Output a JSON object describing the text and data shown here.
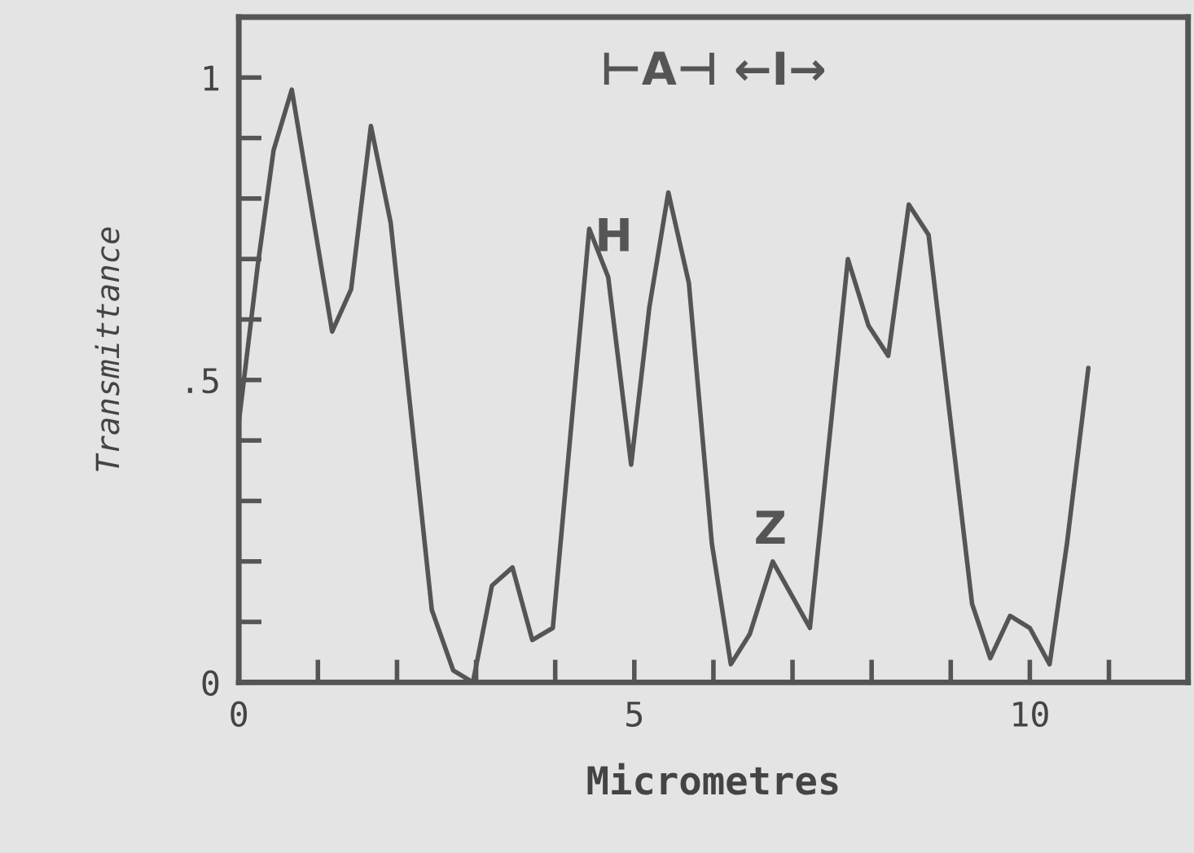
{
  "chart_data": {
    "type": "line",
    "xlabel": "Micrometres",
    "ylabel": "Transmittance",
    "x": [
      0,
      0.24,
      0.44,
      0.67,
      1.18,
      1.42,
      1.67,
      1.92,
      2.44,
      2.71,
      2.96,
      3.2,
      3.46,
      3.71,
      3.97,
      4.43,
      4.67,
      4.96,
      5.19,
      5.43,
      5.69,
      5.98,
      6.22,
      6.46,
      6.75,
      7.22,
      7.7,
      7.96,
      8.21,
      8.47,
      8.72,
      9.27,
      9.5,
      9.75,
      10.0,
      10.25,
      10.47,
      10.74
    ],
    "series": [
      {
        "color": "#555555",
        "values": [
          0.43,
          0.69,
          0.88,
          0.98,
          0.58,
          0.65,
          0.92,
          0.76,
          0.12,
          0.02,
          0.0,
          0.16,
          0.19,
          0.07,
          0.09,
          0.75,
          0.67,
          0.36,
          0.62,
          0.81,
          0.66,
          0.23,
          0.03,
          0.08,
          0.2,
          0.09,
          0.7,
          0.59,
          0.54,
          0.79,
          0.74,
          0.13,
          0.04,
          0.11,
          0.09,
          0.03,
          0.23,
          0.52
        ]
      }
    ],
    "xlim": [
      0,
      12
    ],
    "ylim": [
      0,
      1.1
    ],
    "xticks": [
      0,
      {
        "value": 1,
        "label": null
      },
      {
        "value": 2,
        "label": null
      },
      {
        "value": 3,
        "label": null
      },
      {
        "value": 4,
        "label": null
      },
      5,
      {
        "value": 6,
        "label": null
      },
      {
        "value": 7,
        "label": null
      },
      {
        "value": 8,
        "label": null
      },
      {
        "value": 9,
        "label": null
      },
      10,
      {
        "value": 11,
        "label": null
      }
    ],
    "yticks": [
      0,
      {
        "value": 0.1,
        "label": null
      },
      {
        "value": 0.2,
        "label": null
      },
      {
        "value": 0.3,
        "label": null
      },
      {
        "value": 0.4,
        "label": null
      },
      {
        "value": 0.5,
        "label": ".5"
      },
      {
        "value": 0.6,
        "label": null
      },
      {
        "value": 0.7,
        "label": null
      },
      {
        "value": 0.8,
        "label": null
      },
      {
        "value": 0.9,
        "label": null
      },
      1
    ],
    "annotations": [
      "⊢A⊣ ←I→",
      "H",
      "Z"
    ],
    "grid": false,
    "legend": false,
    "marker": "none",
    "line_style": "solid"
  }
}
